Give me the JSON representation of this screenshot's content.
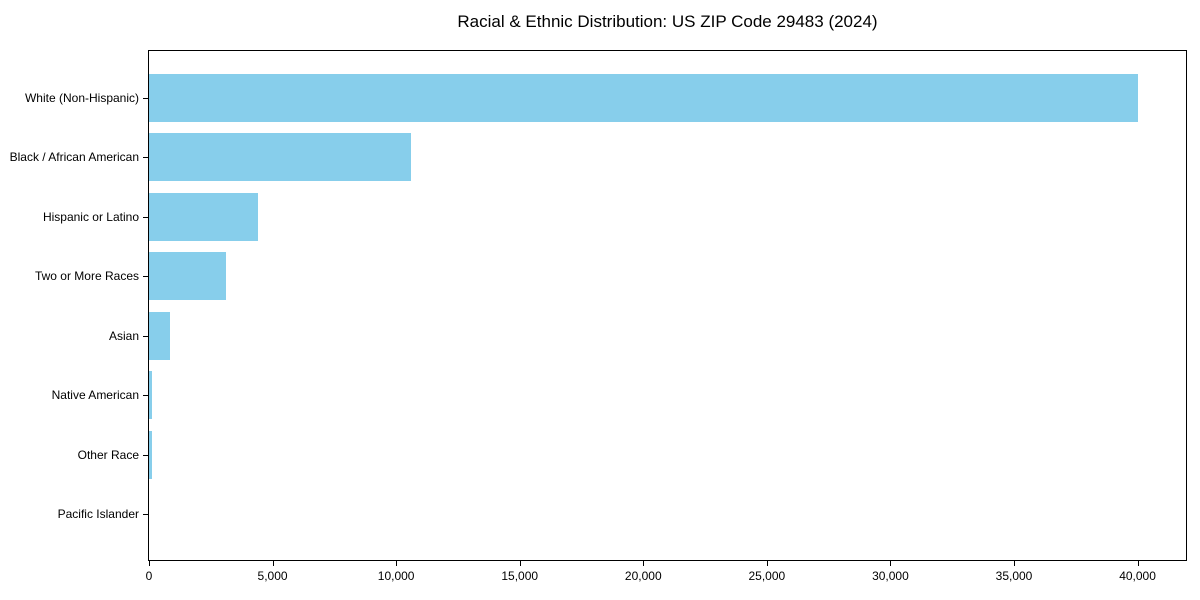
{
  "chart_data": {
    "type": "bar",
    "orientation": "horizontal",
    "title": "Racial & Ethnic Distribution: US ZIP Code 29483 (2024)",
    "categories": [
      "White (Non-Hispanic)",
      "Black / African American",
      "Hispanic or Latino",
      "Two or More Races",
      "Asian",
      "Native American",
      "Other Race",
      "Pacific Islander"
    ],
    "values": [
      40000,
      10600,
      4400,
      3100,
      850,
      120,
      130,
      0
    ],
    "bar_color": "#87CEEB",
    "xlabel": "",
    "ylabel": "",
    "xlim": [
      0,
      42000
    ],
    "x_ticks": [
      0,
      5000,
      10000,
      15000,
      20000,
      25000,
      30000,
      35000,
      40000
    ],
    "x_tick_labels": [
      "0",
      "5,000",
      "10,000",
      "15,000",
      "20,000",
      "25,000",
      "30,000",
      "35,000",
      "40,000"
    ],
    "grid": false,
    "legend": "none",
    "text_color": "#000000",
    "spine_color": "#000000",
    "background_color": "#ffffff"
  }
}
